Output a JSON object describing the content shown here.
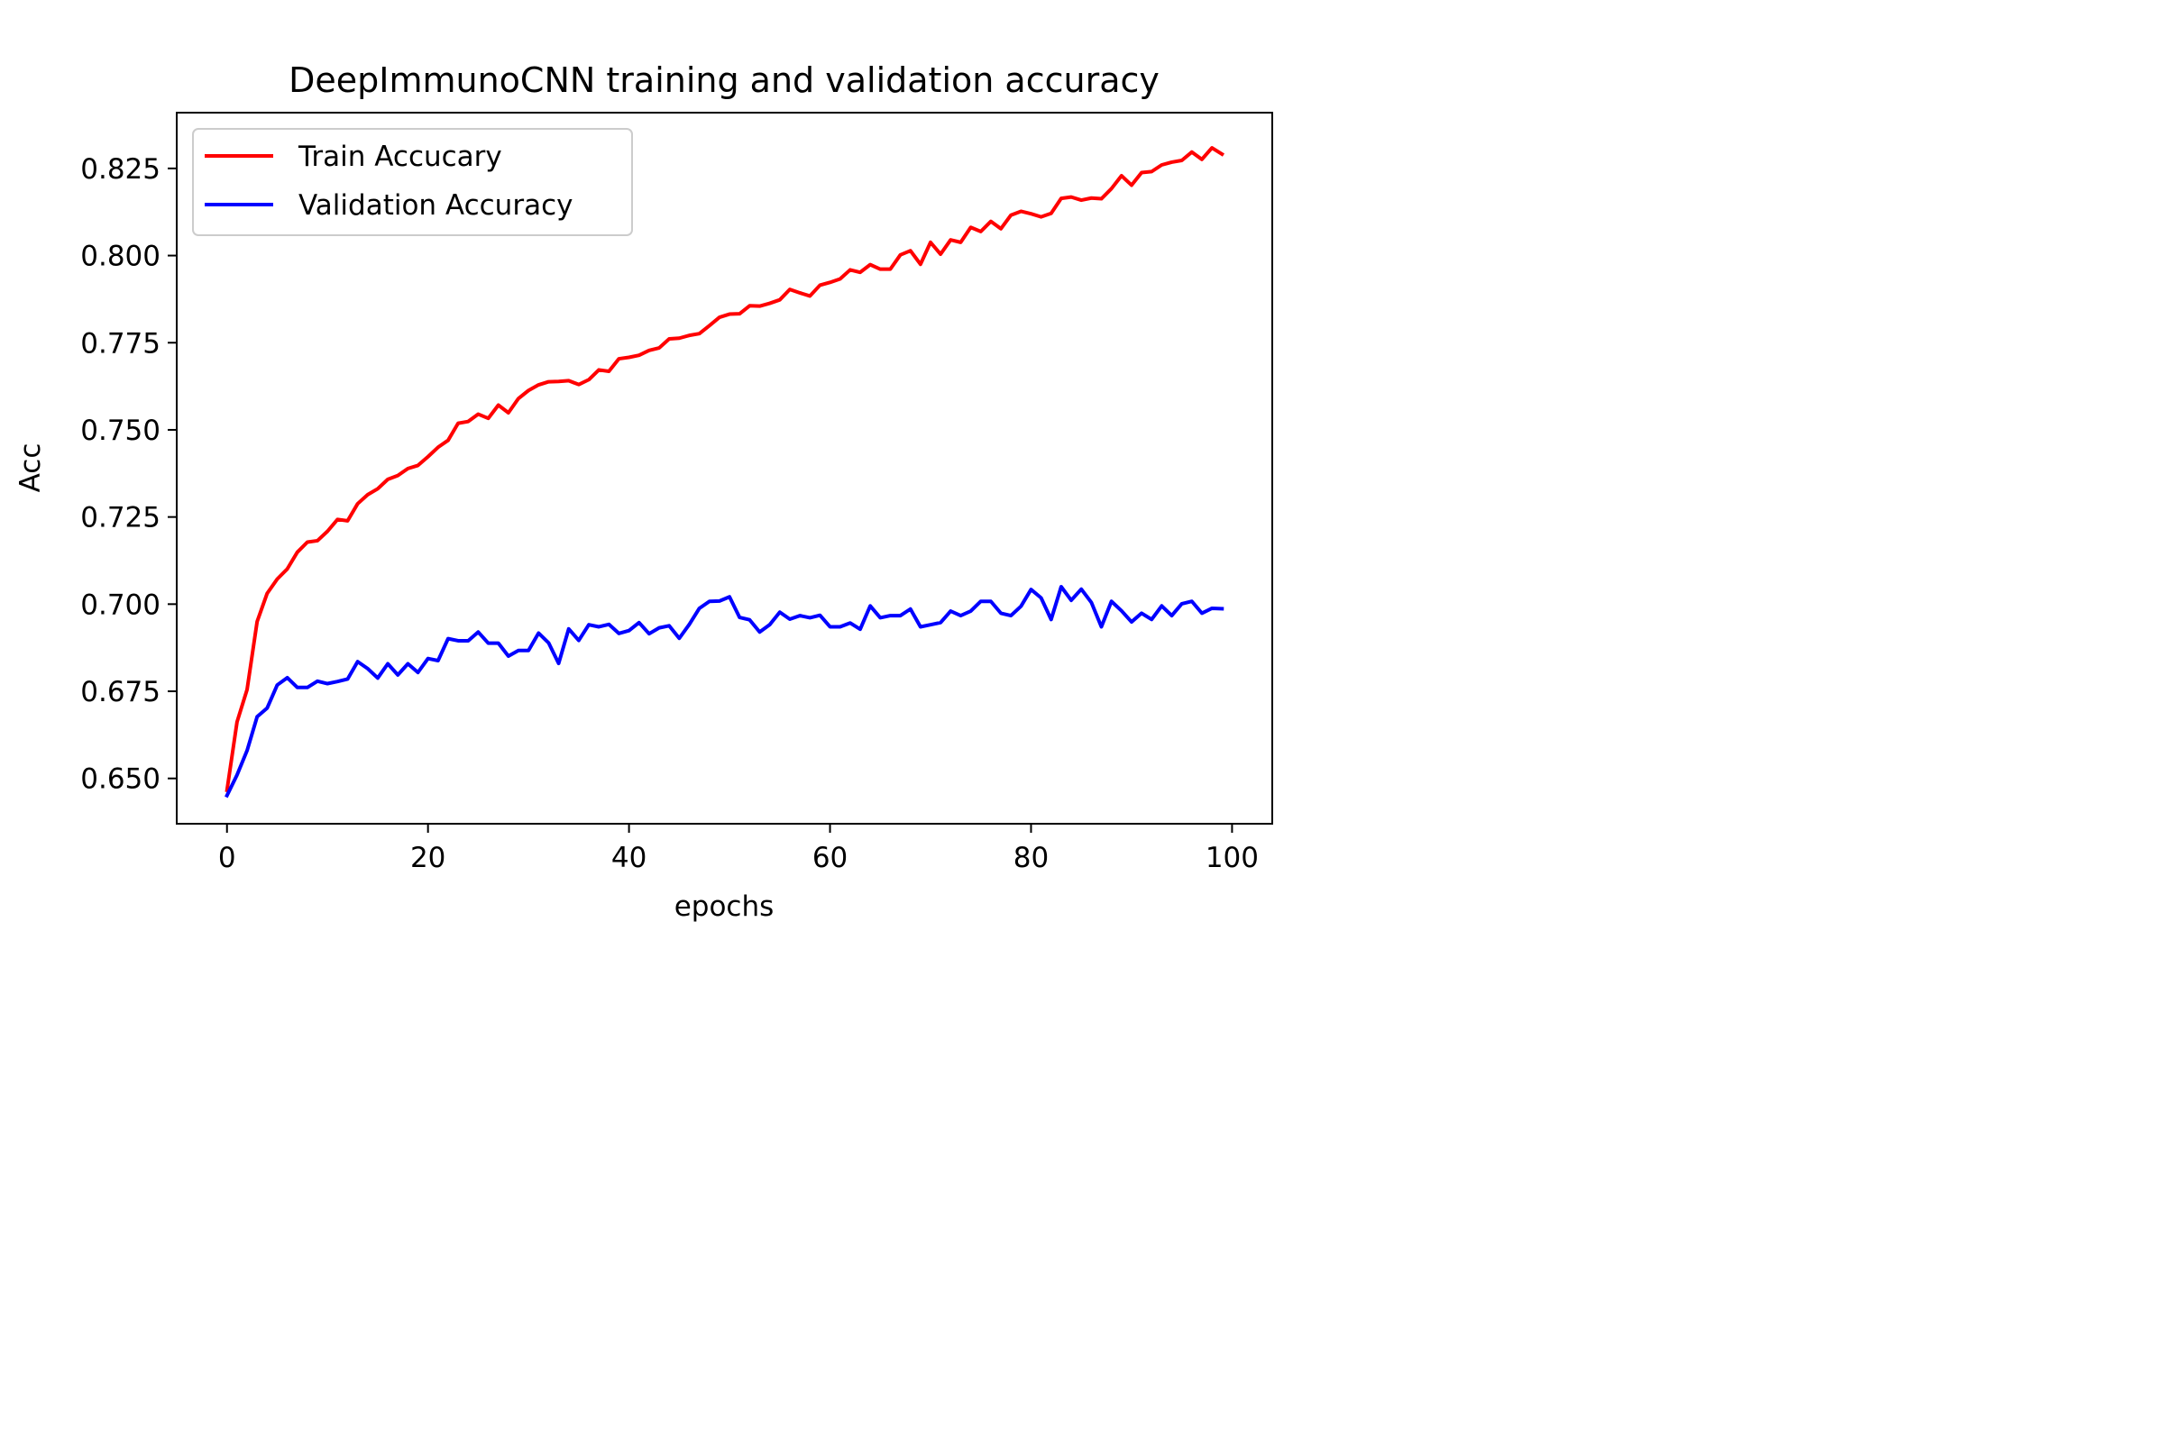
{
  "chart_data": {
    "type": "line",
    "title": "DeepImmunoCNN training and validation accuracy",
    "xlabel": "epochs",
    "ylabel": "Acc",
    "xlim": [
      -5,
      104
    ],
    "ylim": [
      0.637,
      0.841
    ],
    "xticks": [
      0,
      20,
      40,
      60,
      80,
      100
    ],
    "yticks": [
      0.65,
      0.675,
      0.7,
      0.725,
      0.75,
      0.775,
      0.8,
      0.825
    ],
    "xtick_labels": [
      "0",
      "20",
      "40",
      "60",
      "80",
      "100"
    ],
    "ytick_labels": [
      "0.650",
      "0.675",
      "0.700",
      "0.725",
      "0.750",
      "0.775",
      "0.800",
      "0.825"
    ],
    "grid": false,
    "legend_position": "top-left",
    "series": [
      {
        "name": "Train Accucary",
        "color": "#ff0000",
        "values": [
          0.6466,
          0.6662,
          0.6755,
          0.695,
          0.7031,
          0.7072,
          0.7101,
          0.7149,
          0.7178,
          0.7182,
          0.7209,
          0.7243,
          0.7239,
          0.7288,
          0.7314,
          0.7331,
          0.7358,
          0.7369,
          0.7389,
          0.7398,
          0.7423,
          0.745,
          0.747,
          0.7519,
          0.7524,
          0.7545,
          0.7533,
          0.7571,
          0.7549,
          0.759,
          0.7613,
          0.7629,
          0.7638,
          0.7639,
          0.7641,
          0.763,
          0.7644,
          0.7672,
          0.7668,
          0.7704,
          0.7708,
          0.7714,
          0.7728,
          0.7735,
          0.7761,
          0.7763,
          0.7771,
          0.7776,
          0.7799,
          0.7823,
          0.7832,
          0.7833,
          0.7856,
          0.7855,
          0.7863,
          0.7873,
          0.7903,
          0.7893,
          0.7884,
          0.7915,
          0.7923,
          0.7933,
          0.7959,
          0.7952,
          0.7974,
          0.7961,
          0.7961,
          0.8002,
          0.8014,
          0.7975,
          0.8038,
          0.8004,
          0.8045,
          0.8038,
          0.8081,
          0.8069,
          0.8098,
          0.8077,
          0.8116,
          0.8127,
          0.812,
          0.8111,
          0.8121,
          0.8164,
          0.8168,
          0.8159,
          0.8165,
          0.8163,
          0.8192,
          0.8229,
          0.8202,
          0.8238,
          0.8241,
          0.826,
          0.8268,
          0.8273,
          0.8297,
          0.8276,
          0.8309,
          0.8291
        ]
      },
      {
        "name": "Validation Accuracy",
        "color": "#0000ff",
        "values": [
          0.6451,
          0.651,
          0.658,
          0.6677,
          0.6702,
          0.6768,
          0.6789,
          0.6761,
          0.6761,
          0.6779,
          0.6772,
          0.6778,
          0.6785,
          0.6835,
          0.6815,
          0.6788,
          0.6829,
          0.6797,
          0.6829,
          0.6804,
          0.6844,
          0.6838,
          0.6901,
          0.6895,
          0.6895,
          0.692,
          0.6888,
          0.6888,
          0.6851,
          0.6867,
          0.6867,
          0.6917,
          0.6889,
          0.683,
          0.6929,
          0.6896,
          0.6941,
          0.6935,
          0.6942,
          0.6916,
          0.6924,
          0.6947,
          0.6915,
          0.6932,
          0.6938,
          0.6902,
          0.6942,
          0.6988,
          0.7008,
          0.7009,
          0.7021,
          0.6962,
          0.6955,
          0.692,
          0.6941,
          0.6977,
          0.6957,
          0.6967,
          0.6961,
          0.6968,
          0.6935,
          0.6935,
          0.6946,
          0.6928,
          0.6995,
          0.6961,
          0.6967,
          0.6967,
          0.6986,
          0.6935,
          0.6941,
          0.6947,
          0.698,
          0.6967,
          0.698,
          0.7008,
          0.7008,
          0.6974,
          0.6967,
          0.6994,
          0.7042,
          0.7018,
          0.6956,
          0.705,
          0.7011,
          0.7043,
          0.7005,
          0.6935,
          0.7008,
          0.6981,
          0.6949,
          0.6974,
          0.6956,
          0.6995,
          0.6967,
          0.7001,
          0.7008,
          0.6974,
          0.6988,
          0.6987
        ]
      }
    ]
  }
}
